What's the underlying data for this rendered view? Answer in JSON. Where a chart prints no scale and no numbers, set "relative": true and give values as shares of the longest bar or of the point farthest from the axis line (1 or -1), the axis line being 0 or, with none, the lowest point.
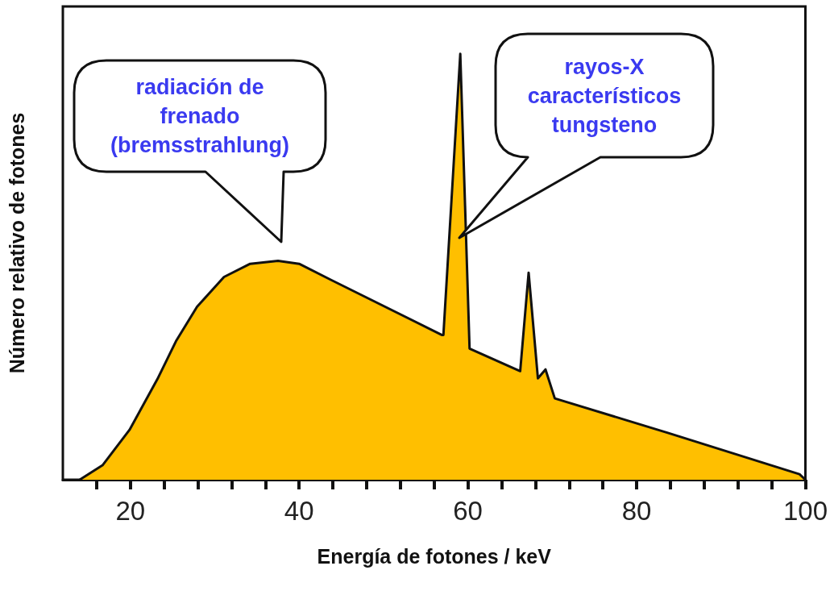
{
  "chart_data": {
    "type": "area",
    "relative": true,
    "xlabel": "Energía de fotones / keV",
    "ylabel": "Número relativo de fotones",
    "x": [
      14,
      16.7,
      19.9,
      23.2,
      25.4,
      27.9,
      31.1,
      34.2,
      37.5,
      40,
      43.8,
      56.9,
      57.1,
      59.1,
      60.2,
      66.2,
      67.2,
      68.3,
      69.2,
      70.3,
      83.7,
      99.3,
      100
    ],
    "series": [
      {
        "color": "#ffbf00",
        "values": [
          0,
          0.034,
          0.117,
          0.236,
          0.325,
          0.406,
          0.476,
          0.507,
          0.514,
          0.507,
          0.469,
          0.34,
          0.34,
          1,
          0.308,
          0.255,
          0.486,
          0.238,
          0.259,
          0.191,
          0.11,
          0.013,
          0
        ]
      }
    ],
    "xlim": [
      12,
      100
    ],
    "xticks": [
      {
        "value": 16,
        "label": null
      },
      20,
      {
        "value": 24,
        "label": null
      },
      {
        "value": 28,
        "label": null
      },
      {
        "value": 32,
        "label": null
      },
      {
        "value": 36,
        "label": null
      },
      40,
      {
        "value": 44,
        "label": null
      },
      {
        "value": 48,
        "label": null
      },
      {
        "value": 52,
        "label": null
      },
      {
        "value": 56,
        "label": null
      },
      60,
      {
        "value": 64,
        "label": null
      },
      {
        "value": 68,
        "label": null
      },
      {
        "value": 72,
        "label": null
      },
      {
        "value": 76,
        "label": null
      },
      80,
      {
        "value": 84,
        "label": null
      },
      {
        "value": 88,
        "label": null
      },
      {
        "value": 92,
        "label": null
      },
      {
        "value": 96,
        "label": null
      },
      100
    ],
    "annotations": [
      "radiación de\nfrenado\n(bremsstrahlung)",
      "rayos-X\ncaracterísticos\ntungsteno"
    ],
    "grid": false,
    "marker": "none",
    "line_style": "solid"
  }
}
